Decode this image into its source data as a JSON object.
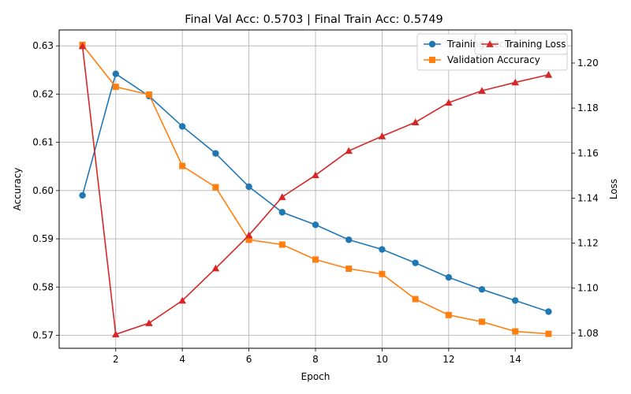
{
  "chart_data": {
    "type": "line",
    "title": "Final Val Acc: 0.5703 | Final Train Acc: 0.5749",
    "xlabel": "Epoch",
    "ylabel": "Accuracy",
    "ylabel_right": "Loss",
    "xlim": [
      0.3,
      15.7
    ],
    "ylim": [
      0.5673,
      0.6333
    ],
    "ylim_right": [
      1.0733,
      1.2147
    ],
    "x_ticks": [
      2,
      4,
      6,
      8,
      10,
      12,
      14
    ],
    "y_ticks": [
      0.57,
      0.58,
      0.59,
      0.6,
      0.61,
      0.62,
      0.63
    ],
    "y_tick_labels": [
      "0.57",
      "0.58",
      "0.59",
      "0.60",
      "0.61",
      "0.62",
      "0.63"
    ],
    "y_ticks_right": [
      1.08,
      1.1,
      1.12,
      1.14,
      1.16,
      1.18,
      1.2
    ],
    "y_tick_labels_right": [
      "1.08",
      "1.10",
      "1.12",
      "1.14",
      "1.16",
      "1.18",
      "1.20"
    ],
    "grid": true,
    "legend_position": "top-right",
    "x": [
      1,
      2,
      3,
      4,
      5,
      6,
      7,
      8,
      9,
      10,
      11,
      12,
      13,
      14,
      15
    ],
    "series": [
      {
        "name": "Training Accuracy",
        "axis": "left",
        "color": "#1f77b4",
        "marker": "circle",
        "values": [
          0.599,
          0.6242,
          0.6196,
          0.6133,
          0.6077,
          0.6008,
          0.5955,
          0.5929,
          0.5898,
          0.5878,
          0.585,
          0.582,
          0.5795,
          0.5772,
          0.5749
        ]
      },
      {
        "name": "Validation Accuracy",
        "axis": "left",
        "color": "#ff7f0e",
        "marker": "square",
        "values": [
          0.6302,
          0.6215,
          0.6199,
          0.6051,
          0.6007,
          0.5898,
          0.5888,
          0.5857,
          0.5838,
          0.5827,
          0.5775,
          0.5742,
          0.5728,
          0.5708,
          0.5703
        ]
      },
      {
        "name": "Training Loss",
        "axis": "right",
        "color": "#d62728",
        "marker": "triangle",
        "values": [
          1.2075,
          1.0795,
          1.0845,
          1.0945,
          1.1088,
          1.1235,
          1.1405,
          1.1502,
          1.161,
          1.1675,
          1.1737,
          1.1824,
          1.1877,
          1.1914,
          1.1948
        ]
      }
    ]
  }
}
